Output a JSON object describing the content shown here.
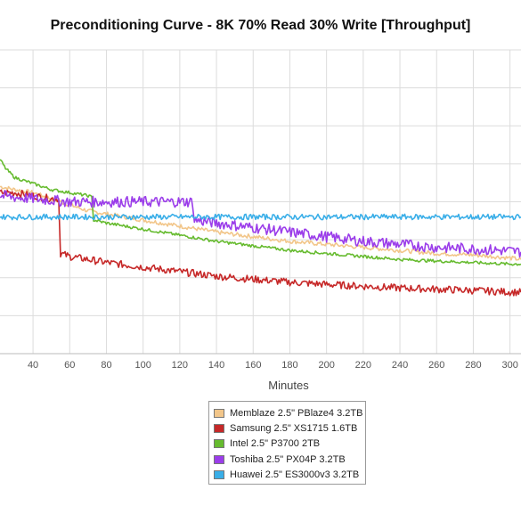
{
  "chart_data": {
    "type": "line",
    "title": "Preconditioning Curve - 8K 70% Read 30% Write [Throughput]",
    "xlabel": "Minutes",
    "ylabel": "",
    "x_ticks": [
      40,
      60,
      80,
      100,
      120,
      140,
      160,
      180,
      200,
      220,
      240,
      260,
      280,
      300
    ],
    "xlim": [
      22,
      306
    ],
    "ylim": [
      0,
      100
    ],
    "grid": true,
    "legend_position": "bottom-center",
    "series": [
      {
        "name": "Memblaze 2.5\" PBlaze4 3.2TB",
        "color": "#f2c68a",
        "x": [
          22,
          30,
          40,
          50,
          55,
          60,
          70,
          80,
          100,
          120,
          140,
          160,
          180,
          200,
          220,
          240,
          260,
          280,
          300,
          306
        ],
        "y": [
          55,
          54,
          53,
          51,
          50,
          49,
          47,
          46,
          44,
          42,
          40,
          38.5,
          37,
          36,
          35,
          34,
          33,
          32.5,
          31.5,
          31
        ]
      },
      {
        "name": "Samsung 2.5\" XS1715 1.6TB",
        "color": "#c62828",
        "x": [
          22,
          30,
          40,
          50,
          54,
          55,
          60,
          80,
          100,
          120,
          140,
          160,
          180,
          200,
          220,
          240,
          260,
          280,
          300,
          306
        ],
        "y": [
          53,
          53,
          52,
          51,
          51,
          33,
          32,
          30,
          28.5,
          27,
          25.5,
          24.5,
          23.5,
          22.8,
          22.2,
          21.6,
          21.2,
          20.8,
          20.3,
          20.2
        ]
      },
      {
        "name": "Intel 2.5\" P3700 2TB",
        "color": "#66bb2f",
        "x": [
          22,
          25,
          30,
          40,
          50,
          60,
          70,
          72,
          73,
          80,
          100,
          120,
          140,
          160,
          180,
          200,
          220,
          240,
          260,
          280,
          300,
          306
        ],
        "y": [
          64,
          61,
          58,
          56,
          54,
          53,
          52,
          51.5,
          44,
          43,
          41,
          39,
          37,
          35.5,
          34,
          33,
          32,
          31,
          30.5,
          30,
          29.5,
          29.5
        ]
      },
      {
        "name": "Toshiba 2.5\" PX04P 3.2TB",
        "color": "#9b3dea",
        "x": [
          22,
          30,
          40,
          50,
          60,
          70,
          80,
          90,
          100,
          110,
          120,
          127,
          128,
          140,
          160,
          180,
          200,
          220,
          240,
          260,
          280,
          300,
          306
        ],
        "y": [
          52,
          51.5,
          51,
          50.5,
          50,
          50,
          50,
          50,
          50,
          50,
          50,
          50,
          44,
          43,
          41.5,
          40,
          38.5,
          37,
          36,
          35,
          34.5,
          33.8,
          33.5
        ]
      },
      {
        "name": "Huawei 2.5\" ES3000v3 3.2TB",
        "color": "#39aee8",
        "x": [
          22,
          40,
          60,
          80,
          100,
          120,
          140,
          160,
          180,
          200,
          220,
          240,
          260,
          280,
          300,
          306
        ],
        "y": [
          45,
          45,
          45,
          45,
          45,
          45,
          45,
          45,
          45,
          45,
          45,
          45,
          45,
          45,
          45,
          45
        ]
      }
    ]
  }
}
